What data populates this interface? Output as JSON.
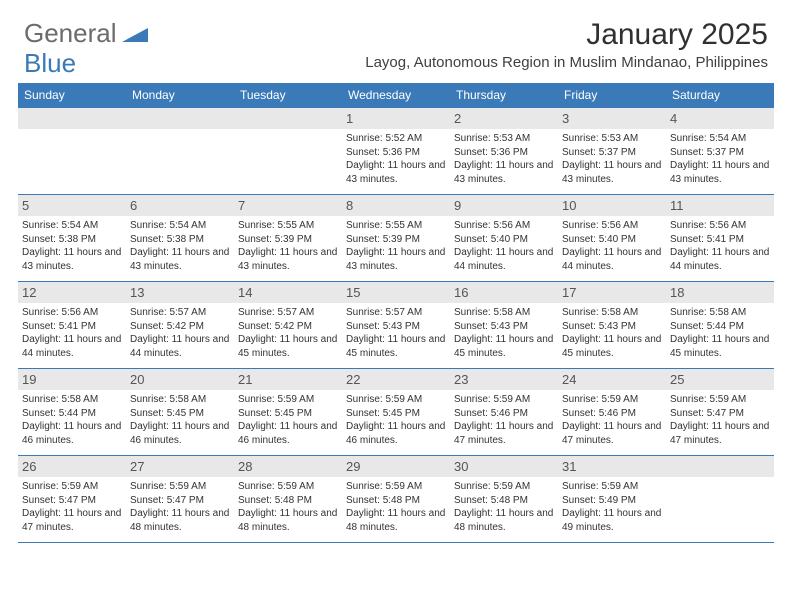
{
  "logo": {
    "general": "General",
    "blue": "Blue"
  },
  "title": "January 2025",
  "location": "Layog, Autonomous Region in Muslim Mindanao, Philippines",
  "colors": {
    "header_bg": "#3a7ab8",
    "header_text": "#ffffff",
    "daynum_bg": "#e8e8e8",
    "daynum_text": "#555555",
    "body_text": "#333333",
    "logo_gray": "#6b6b6b",
    "logo_blue": "#3a7ab8"
  },
  "daynames": [
    "Sunday",
    "Monday",
    "Tuesday",
    "Wednesday",
    "Thursday",
    "Friday",
    "Saturday"
  ],
  "weeks": [
    [
      null,
      null,
      null,
      {
        "n": "1",
        "sr": "5:52 AM",
        "ss": "5:36 PM",
        "dl": "11 hours and 43 minutes."
      },
      {
        "n": "2",
        "sr": "5:53 AM",
        "ss": "5:36 PM",
        "dl": "11 hours and 43 minutes."
      },
      {
        "n": "3",
        "sr": "5:53 AM",
        "ss": "5:37 PM",
        "dl": "11 hours and 43 minutes."
      },
      {
        "n": "4",
        "sr": "5:54 AM",
        "ss": "5:37 PM",
        "dl": "11 hours and 43 minutes."
      }
    ],
    [
      {
        "n": "5",
        "sr": "5:54 AM",
        "ss": "5:38 PM",
        "dl": "11 hours and 43 minutes."
      },
      {
        "n": "6",
        "sr": "5:54 AM",
        "ss": "5:38 PM",
        "dl": "11 hours and 43 minutes."
      },
      {
        "n": "7",
        "sr": "5:55 AM",
        "ss": "5:39 PM",
        "dl": "11 hours and 43 minutes."
      },
      {
        "n": "8",
        "sr": "5:55 AM",
        "ss": "5:39 PM",
        "dl": "11 hours and 43 minutes."
      },
      {
        "n": "9",
        "sr": "5:56 AM",
        "ss": "5:40 PM",
        "dl": "11 hours and 44 minutes."
      },
      {
        "n": "10",
        "sr": "5:56 AM",
        "ss": "5:40 PM",
        "dl": "11 hours and 44 minutes."
      },
      {
        "n": "11",
        "sr": "5:56 AM",
        "ss": "5:41 PM",
        "dl": "11 hours and 44 minutes."
      }
    ],
    [
      {
        "n": "12",
        "sr": "5:56 AM",
        "ss": "5:41 PM",
        "dl": "11 hours and 44 minutes."
      },
      {
        "n": "13",
        "sr": "5:57 AM",
        "ss": "5:42 PM",
        "dl": "11 hours and 44 minutes."
      },
      {
        "n": "14",
        "sr": "5:57 AM",
        "ss": "5:42 PM",
        "dl": "11 hours and 45 minutes."
      },
      {
        "n": "15",
        "sr": "5:57 AM",
        "ss": "5:43 PM",
        "dl": "11 hours and 45 minutes."
      },
      {
        "n": "16",
        "sr": "5:58 AM",
        "ss": "5:43 PM",
        "dl": "11 hours and 45 minutes."
      },
      {
        "n": "17",
        "sr": "5:58 AM",
        "ss": "5:43 PM",
        "dl": "11 hours and 45 minutes."
      },
      {
        "n": "18",
        "sr": "5:58 AM",
        "ss": "5:44 PM",
        "dl": "11 hours and 45 minutes."
      }
    ],
    [
      {
        "n": "19",
        "sr": "5:58 AM",
        "ss": "5:44 PM",
        "dl": "11 hours and 46 minutes."
      },
      {
        "n": "20",
        "sr": "5:58 AM",
        "ss": "5:45 PM",
        "dl": "11 hours and 46 minutes."
      },
      {
        "n": "21",
        "sr": "5:59 AM",
        "ss": "5:45 PM",
        "dl": "11 hours and 46 minutes."
      },
      {
        "n": "22",
        "sr": "5:59 AM",
        "ss": "5:45 PM",
        "dl": "11 hours and 46 minutes."
      },
      {
        "n": "23",
        "sr": "5:59 AM",
        "ss": "5:46 PM",
        "dl": "11 hours and 47 minutes."
      },
      {
        "n": "24",
        "sr": "5:59 AM",
        "ss": "5:46 PM",
        "dl": "11 hours and 47 minutes."
      },
      {
        "n": "25",
        "sr": "5:59 AM",
        "ss": "5:47 PM",
        "dl": "11 hours and 47 minutes."
      }
    ],
    [
      {
        "n": "26",
        "sr": "5:59 AM",
        "ss": "5:47 PM",
        "dl": "11 hours and 47 minutes."
      },
      {
        "n": "27",
        "sr": "5:59 AM",
        "ss": "5:47 PM",
        "dl": "11 hours and 48 minutes."
      },
      {
        "n": "28",
        "sr": "5:59 AM",
        "ss": "5:48 PM",
        "dl": "11 hours and 48 minutes."
      },
      {
        "n": "29",
        "sr": "5:59 AM",
        "ss": "5:48 PM",
        "dl": "11 hours and 48 minutes."
      },
      {
        "n": "30",
        "sr": "5:59 AM",
        "ss": "5:48 PM",
        "dl": "11 hours and 48 minutes."
      },
      {
        "n": "31",
        "sr": "5:59 AM",
        "ss": "5:49 PM",
        "dl": "11 hours and 49 minutes."
      },
      null
    ]
  ],
  "labels": {
    "sunrise": "Sunrise: ",
    "sunset": "Sunset: ",
    "daylight": "Daylight: "
  }
}
